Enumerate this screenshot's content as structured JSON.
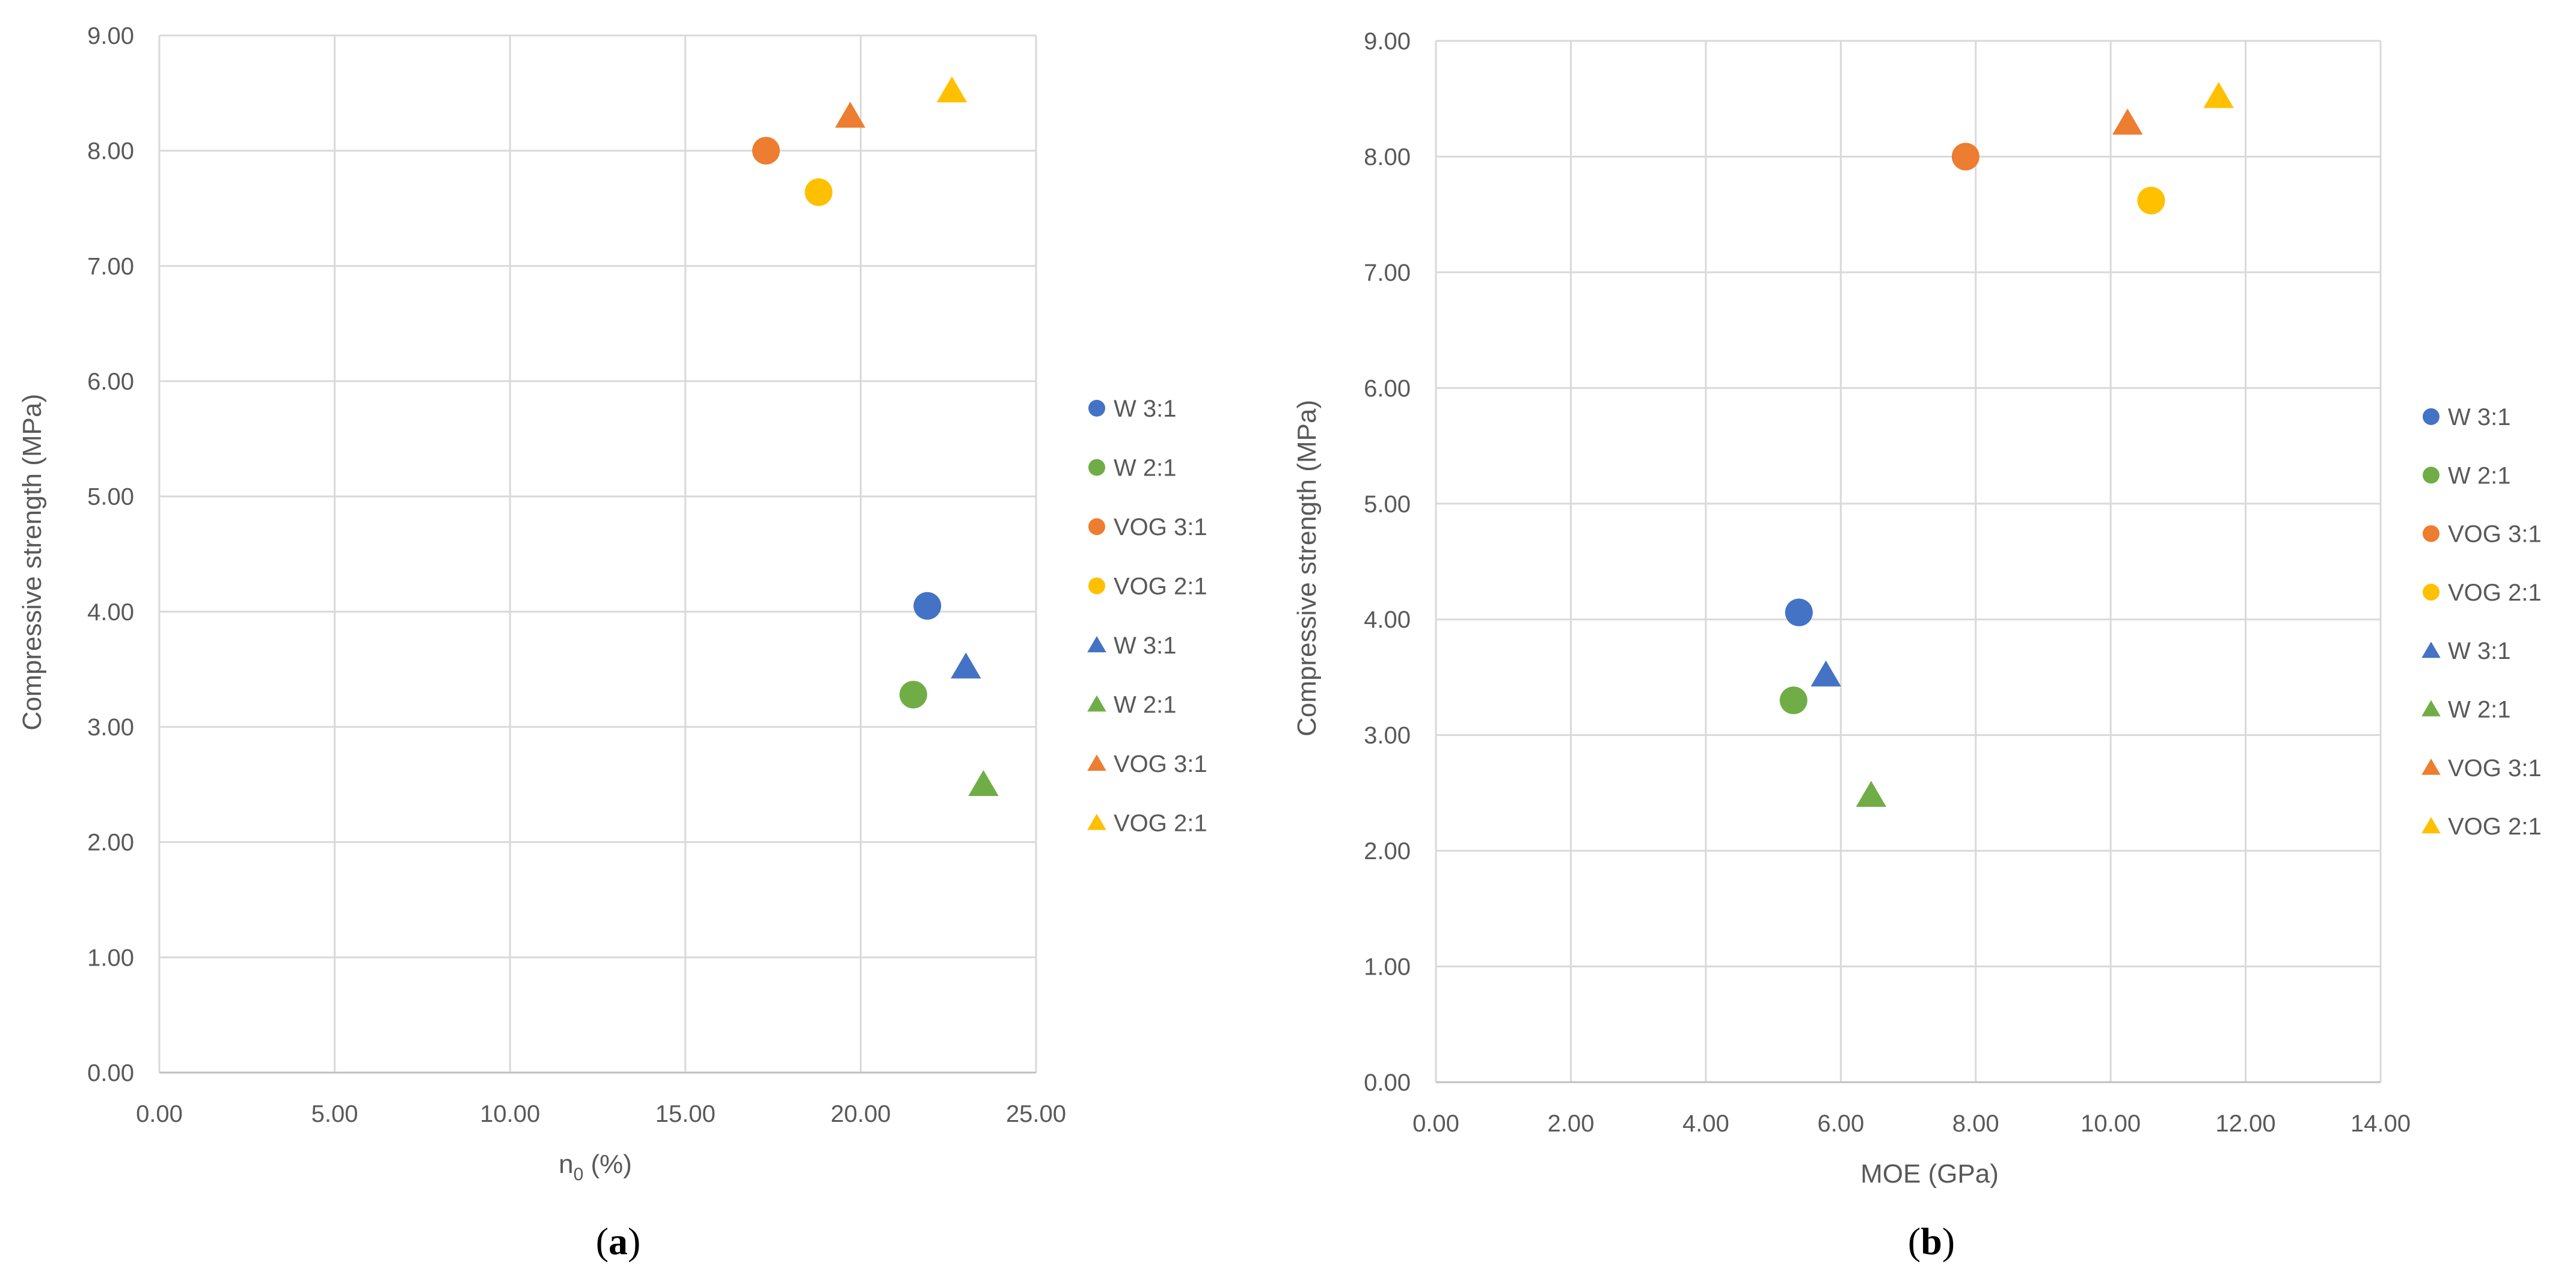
{
  "chart_data": [
    {
      "type": "scatter",
      "panel_label_open": "(",
      "panel_label_letter": "a",
      "panel_label_close": ")",
      "xlabel_main": "n",
      "xlabel_sub": "0",
      "xlabel_rest": " (%)",
      "ylabel": "Compressive strength (MPa)",
      "xlim": [
        0,
        25
      ],
      "ylim": [
        0,
        9
      ],
      "xticks": [
        "0.00",
        "5.00",
        "10.00",
        "15.00",
        "20.00",
        "25.00"
      ],
      "yticks": [
        "0.00",
        "1.00",
        "2.00",
        "3.00",
        "4.00",
        "5.00",
        "6.00",
        "7.00",
        "8.00",
        "9.00"
      ],
      "grid": true,
      "legend_position": "right",
      "series": [
        {
          "name": "W 3:1",
          "marker": "circle",
          "color": "#4472C4",
          "x": 21.9,
          "y": 4.05
        },
        {
          "name": "W 2:1",
          "marker": "circle",
          "color": "#70AD47",
          "x": 21.5,
          "y": 3.28
        },
        {
          "name": "VOG 3:1",
          "marker": "circle",
          "color": "#ED7D31",
          "x": 17.3,
          "y": 8.0
        },
        {
          "name": "VOG 2:1",
          "marker": "circle",
          "color": "#FFC000",
          "x": 18.8,
          "y": 7.64
        },
        {
          "name": "W 3:1",
          "marker": "triangle",
          "color": "#4472C4",
          "x": 23.0,
          "y": 3.52
        },
        {
          "name": "W 2:1",
          "marker": "triangle",
          "color": "#70AD47",
          "x": 23.5,
          "y": 2.5
        },
        {
          "name": "VOG 3:1",
          "marker": "triangle",
          "color": "#ED7D31",
          "x": 19.7,
          "y": 8.3
        },
        {
          "name": "VOG 2:1",
          "marker": "triangle",
          "color": "#FFC000",
          "x": 22.6,
          "y": 8.52
        }
      ]
    },
    {
      "type": "scatter",
      "panel_label_open": "(",
      "panel_label_letter": "b",
      "panel_label_close": ")",
      "xlabel": "MOE (GPa)",
      "ylabel": "Compressive strength (MPa)",
      "xlim": [
        0,
        14
      ],
      "ylim": [
        0,
        9
      ],
      "xticks": [
        "0.00",
        "2.00",
        "4.00",
        "6.00",
        "8.00",
        "10.00",
        "12.00",
        "14.00"
      ],
      "yticks": [
        "0.00",
        "1.00",
        "2.00",
        "3.00",
        "4.00",
        "5.00",
        "6.00",
        "7.00",
        "8.00",
        "9.00"
      ],
      "grid": true,
      "legend_position": "right",
      "series": [
        {
          "name": "W 3:1",
          "marker": "circle",
          "color": "#4472C4",
          "x": 5.38,
          "y": 4.06
        },
        {
          "name": "W 2:1",
          "marker": "circle",
          "color": "#70AD47",
          "x": 5.3,
          "y": 3.3
        },
        {
          "name": "VOG 3:1",
          "marker": "circle",
          "color": "#ED7D31",
          "x": 7.85,
          "y": 8.0
        },
        {
          "name": "VOG 2:1",
          "marker": "circle",
          "color": "#FFC000",
          "x": 10.6,
          "y": 7.62
        },
        {
          "name": "W 3:1",
          "marker": "triangle",
          "color": "#4472C4",
          "x": 5.78,
          "y": 3.52
        },
        {
          "name": "W 2:1",
          "marker": "triangle",
          "color": "#70AD47",
          "x": 6.45,
          "y": 2.48
        },
        {
          "name": "VOG 3:1",
          "marker": "triangle",
          "color": "#ED7D31",
          "x": 10.25,
          "y": 8.29
        },
        {
          "name": "VOG 2:1",
          "marker": "triangle",
          "color": "#FFC000",
          "x": 11.6,
          "y": 8.52
        }
      ]
    }
  ]
}
